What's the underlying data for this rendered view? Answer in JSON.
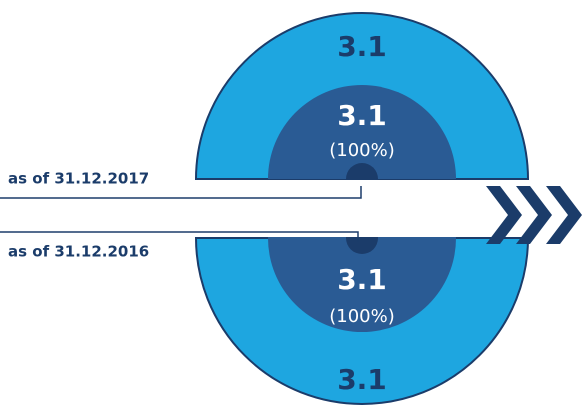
{
  "current": {
    "date_label": "as of 31.12.2017",
    "outer_value": 3.1,
    "inner_value": 3.1,
    "inner_share": "(100%)"
  },
  "previous": {
    "date_label": "as of 31.12.2016",
    "outer_value": 3.1,
    "inner_value": 3.1,
    "inner_share": "(100%)"
  }
}
